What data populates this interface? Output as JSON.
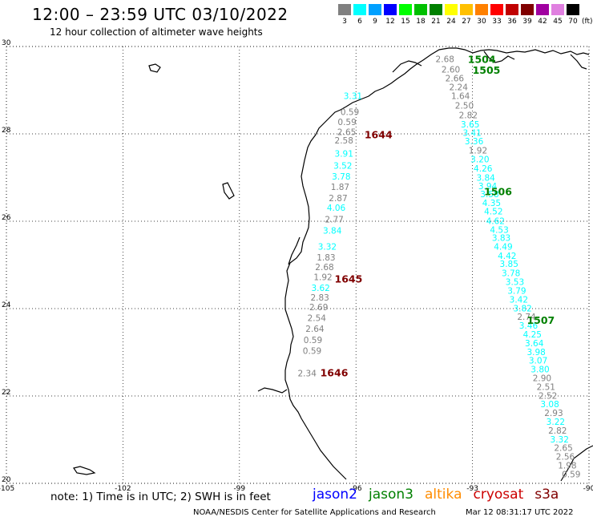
{
  "header": {
    "title": "12:00 – 23:59 UTC 03/10/2022",
    "subtitle": "12 hour collection of altimeter wave heights"
  },
  "colorbar": {
    "unit": "(ft)",
    "bins": [
      {
        "label": "3",
        "color": "#808080"
      },
      {
        "label": "6",
        "color": "#00ffff"
      },
      {
        "label": "9",
        "color": "#00a0ff"
      },
      {
        "label": "12",
        "color": "#0000ff"
      },
      {
        "label": "15",
        "color": "#00ff00"
      },
      {
        "label": "18",
        "color": "#00c000"
      },
      {
        "label": "21",
        "color": "#008000"
      },
      {
        "label": "24",
        "color": "#ffff00"
      },
      {
        "label": "27",
        "color": "#ffc000"
      },
      {
        "label": "30",
        "color": "#ff8000"
      },
      {
        "label": "33",
        "color": "#ff0000"
      },
      {
        "label": "36",
        "color": "#c00000"
      },
      {
        "label": "39",
        "color": "#800000"
      },
      {
        "label": "42",
        "color": "#a000a0"
      },
      {
        "label": "45",
        "color": "#e080e0"
      },
      {
        "label": "70",
        "color": "#000000"
      }
    ]
  },
  "map": {
    "lat_range": [
      20,
      30
    ],
    "lon_range": [
      -105,
      -90
    ],
    "lat_ticks": [
      "30",
      "28",
      "26",
      "24",
      "22",
      "20"
    ],
    "lon_ticks": [
      "-105",
      "-102",
      "-99",
      "-96",
      "-93",
      "-90"
    ],
    "colors": {
      "jason2": "#0000ff",
      "jason3": "#008000",
      "altika": "#ff8c00",
      "cryosat": "#cc0000",
      "s3a": "#800000",
      "coast": "#000000",
      "grid": "#000000"
    },
    "passes": [
      {
        "label": "1504",
        "lon": -93.12,
        "lat": 29.62,
        "color": "#008000"
      },
      {
        "label": "1505",
        "lon": -93.0,
        "lat": 29.38,
        "color": "#008000"
      },
      {
        "label": "1506",
        "lon": -92.7,
        "lat": 26.6,
        "color": "#008000"
      },
      {
        "label": "1507",
        "lon": -91.6,
        "lat": 23.65,
        "color": "#008000"
      },
      {
        "label": "1644",
        "lon": -95.78,
        "lat": 27.9,
        "color": "#800000"
      },
      {
        "label": "1645",
        "lon": -96.55,
        "lat": 24.6,
        "color": "#800000"
      },
      {
        "label": "1646",
        "lon": -96.92,
        "lat": 22.45,
        "color": "#800000"
      }
    ],
    "observations": [
      {
        "v": "2.68",
        "lon": -93.95,
        "lat": 29.64,
        "color": "#808080"
      },
      {
        "v": "2.60",
        "lon": -93.8,
        "lat": 29.4,
        "color": "#808080"
      },
      {
        "v": "2.66",
        "lon": -93.7,
        "lat": 29.2,
        "color": "#808080"
      },
      {
        "v": "2.24",
        "lon": -93.6,
        "lat": 29.0,
        "color": "#808080"
      },
      {
        "v": "1.64",
        "lon": -93.55,
        "lat": 28.8,
        "color": "#808080"
      },
      {
        "v": "2.50",
        "lon": -93.45,
        "lat": 28.58,
        "color": "#808080"
      },
      {
        "v": "2.82",
        "lon": -93.35,
        "lat": 28.36,
        "color": "#808080"
      },
      {
        "v": "3.65",
        "lon": -93.3,
        "lat": 28.15,
        "color": "#00ffff"
      },
      {
        "v": "3.41",
        "lon": -93.25,
        "lat": 27.95,
        "color": "#00ffff"
      },
      {
        "v": "3.36",
        "lon": -93.2,
        "lat": 27.76,
        "color": "#00ffff"
      },
      {
        "v": "1.92",
        "lon": -93.1,
        "lat": 27.55,
        "color": "#808080"
      },
      {
        "v": "3.20",
        "lon": -93.05,
        "lat": 27.35,
        "color": "#00ffff"
      },
      {
        "v": "4.26",
        "lon": -92.97,
        "lat": 27.14,
        "color": "#00ffff"
      },
      {
        "v": "3.84",
        "lon": -92.9,
        "lat": 26.93,
        "color": "#00ffff"
      },
      {
        "v": "3.94",
        "lon": -92.85,
        "lat": 26.73,
        "color": "#00ffff"
      },
      {
        "v": "3.58",
        "lon": -92.8,
        "lat": 26.55,
        "color": "#00ffff"
      },
      {
        "v": "4.35",
        "lon": -92.75,
        "lat": 26.35,
        "color": "#00ffff"
      },
      {
        "v": "4.52",
        "lon": -92.7,
        "lat": 26.16,
        "color": "#00ffff"
      },
      {
        "v": "4.62",
        "lon": -92.65,
        "lat": 25.94,
        "color": "#00ffff"
      },
      {
        "v": "4.53",
        "lon": -92.55,
        "lat": 25.73,
        "color": "#00ffff"
      },
      {
        "v": "3.83",
        "lon": -92.5,
        "lat": 25.55,
        "color": "#00ffff"
      },
      {
        "v": "4.49",
        "lon": -92.45,
        "lat": 25.35,
        "color": "#00ffff"
      },
      {
        "v": "4.42",
        "lon": -92.35,
        "lat": 25.14,
        "color": "#00ffff"
      },
      {
        "v": "3.85",
        "lon": -92.3,
        "lat": 24.95,
        "color": "#00ffff"
      },
      {
        "v": "3.78",
        "lon": -92.25,
        "lat": 24.74,
        "color": "#00ffff"
      },
      {
        "v": "3.53",
        "lon": -92.15,
        "lat": 24.54,
        "color": "#00ffff"
      },
      {
        "v": "3.79",
        "lon": -92.1,
        "lat": 24.34,
        "color": "#00ffff"
      },
      {
        "v": "3.42",
        "lon": -92.05,
        "lat": 24.14,
        "color": "#00ffff"
      },
      {
        "v": "3.82",
        "lon": -91.95,
        "lat": 23.94,
        "color": "#00ffff"
      },
      {
        "v": "2.74",
        "lon": -91.85,
        "lat": 23.74,
        "color": "#808080"
      },
      {
        "v": "3.46",
        "lon": -91.8,
        "lat": 23.54,
        "color": "#00ffff"
      },
      {
        "v": "4.25",
        "lon": -91.7,
        "lat": 23.34,
        "color": "#00ffff"
      },
      {
        "v": "3.64",
        "lon": -91.65,
        "lat": 23.14,
        "color": "#00ffff"
      },
      {
        "v": "3.98",
        "lon": -91.6,
        "lat": 22.94,
        "color": "#00ffff"
      },
      {
        "v": "3.07",
        "lon": -91.55,
        "lat": 22.74,
        "color": "#00ffff"
      },
      {
        "v": "3.80",
        "lon": -91.5,
        "lat": 22.54,
        "color": "#00ffff"
      },
      {
        "v": "2.90",
        "lon": -91.45,
        "lat": 22.34,
        "color": "#808080"
      },
      {
        "v": "2.51",
        "lon": -91.35,
        "lat": 22.14,
        "color": "#808080"
      },
      {
        "v": "2.52",
        "lon": -91.3,
        "lat": 21.94,
        "color": "#808080"
      },
      {
        "v": "3.08",
        "lon": -91.25,
        "lat": 21.74,
        "color": "#00ffff"
      },
      {
        "v": "2.93",
        "lon": -91.15,
        "lat": 21.54,
        "color": "#808080"
      },
      {
        "v": "3.22",
        "lon": -91.1,
        "lat": 21.34,
        "color": "#00ffff"
      },
      {
        "v": "2.82",
        "lon": -91.05,
        "lat": 21.14,
        "color": "#808080"
      },
      {
        "v": "3.32",
        "lon": -91.0,
        "lat": 20.94,
        "color": "#00ffff"
      },
      {
        "v": "2.65",
        "lon": -90.9,
        "lat": 20.74,
        "color": "#808080"
      },
      {
        "v": "2.56",
        "lon": -90.85,
        "lat": 20.54,
        "color": "#808080"
      },
      {
        "v": "1.98",
        "lon": -90.8,
        "lat": 20.34,
        "color": "#808080"
      },
      {
        "v": "0.59",
        "lon": -90.7,
        "lat": 20.14,
        "color": "#808080"
      },
      {
        "v": "3.31",
        "lon": -96.32,
        "lat": 28.8,
        "color": "#00ffff"
      },
      {
        "v": "0.59",
        "lon": -96.4,
        "lat": 28.43,
        "color": "#808080"
      },
      {
        "v": "0.59",
        "lon": -96.47,
        "lat": 28.2,
        "color": "#808080"
      },
      {
        "v": "2.65",
        "lon": -96.48,
        "lat": 27.97,
        "color": "#808080"
      },
      {
        "v": "2.58",
        "lon": -96.55,
        "lat": 27.78,
        "color": "#808080"
      },
      {
        "v": "3.91",
        "lon": -96.55,
        "lat": 27.48,
        "color": "#00ffff"
      },
      {
        "v": "3.52",
        "lon": -96.58,
        "lat": 27.2,
        "color": "#00ffff"
      },
      {
        "v": "3.78",
        "lon": -96.62,
        "lat": 26.95,
        "color": "#00ffff"
      },
      {
        "v": "1.87",
        "lon": -96.65,
        "lat": 26.72,
        "color": "#808080"
      },
      {
        "v": "2.87",
        "lon": -96.7,
        "lat": 26.46,
        "color": "#808080"
      },
      {
        "v": "4.06",
        "lon": -96.75,
        "lat": 26.24,
        "color": "#00ffff"
      },
      {
        "v": "2.77",
        "lon": -96.8,
        "lat": 25.97,
        "color": "#808080"
      },
      {
        "v": "3.84",
        "lon": -96.85,
        "lat": 25.72,
        "color": "#00ffff"
      },
      {
        "v": "3.32",
        "lon": -96.98,
        "lat": 25.35,
        "color": "#00ffff"
      },
      {
        "v": "1.83",
        "lon": -97.01,
        "lat": 25.1,
        "color": "#808080"
      },
      {
        "v": "2.68",
        "lon": -97.05,
        "lat": 24.88,
        "color": "#808080"
      },
      {
        "v": "1.92",
        "lon": -97.09,
        "lat": 24.65,
        "color": "#808080"
      },
      {
        "v": "3.62",
        "lon": -97.15,
        "lat": 24.4,
        "color": "#00ffff"
      },
      {
        "v": "2.83",
        "lon": -97.17,
        "lat": 24.18,
        "color": "#808080"
      },
      {
        "v": "2.69",
        "lon": -97.2,
        "lat": 23.96,
        "color": "#808080"
      },
      {
        "v": "2.54",
        "lon": -97.25,
        "lat": 23.72,
        "color": "#808080"
      },
      {
        "v": "2.64",
        "lon": -97.3,
        "lat": 23.47,
        "color": "#808080"
      },
      {
        "v": "0.59",
        "lon": -97.35,
        "lat": 23.21,
        "color": "#808080"
      },
      {
        "v": "0.59",
        "lon": -97.37,
        "lat": 22.96,
        "color": "#808080"
      },
      {
        "v": "2.34",
        "lon": -97.5,
        "lat": 22.45,
        "color": "#808080"
      }
    ]
  },
  "footer": {
    "note": "note: 1) Time is in UTC; 2) SWH is in feet",
    "legend": [
      {
        "name": "jason2",
        "color": "#0000ff"
      },
      {
        "name": "jason3",
        "color": "#008000"
      },
      {
        "name": "altika",
        "color": "#ff8c00"
      },
      {
        "name": "cryosat",
        "color": "#cc0000"
      },
      {
        "name": "s3a",
        "color": "#800000"
      }
    ],
    "credit": "NOAA/NESDIS Center for Satellite Applications and Research",
    "timestamp": "Mar 12 08:31:17 UTC 2022"
  }
}
